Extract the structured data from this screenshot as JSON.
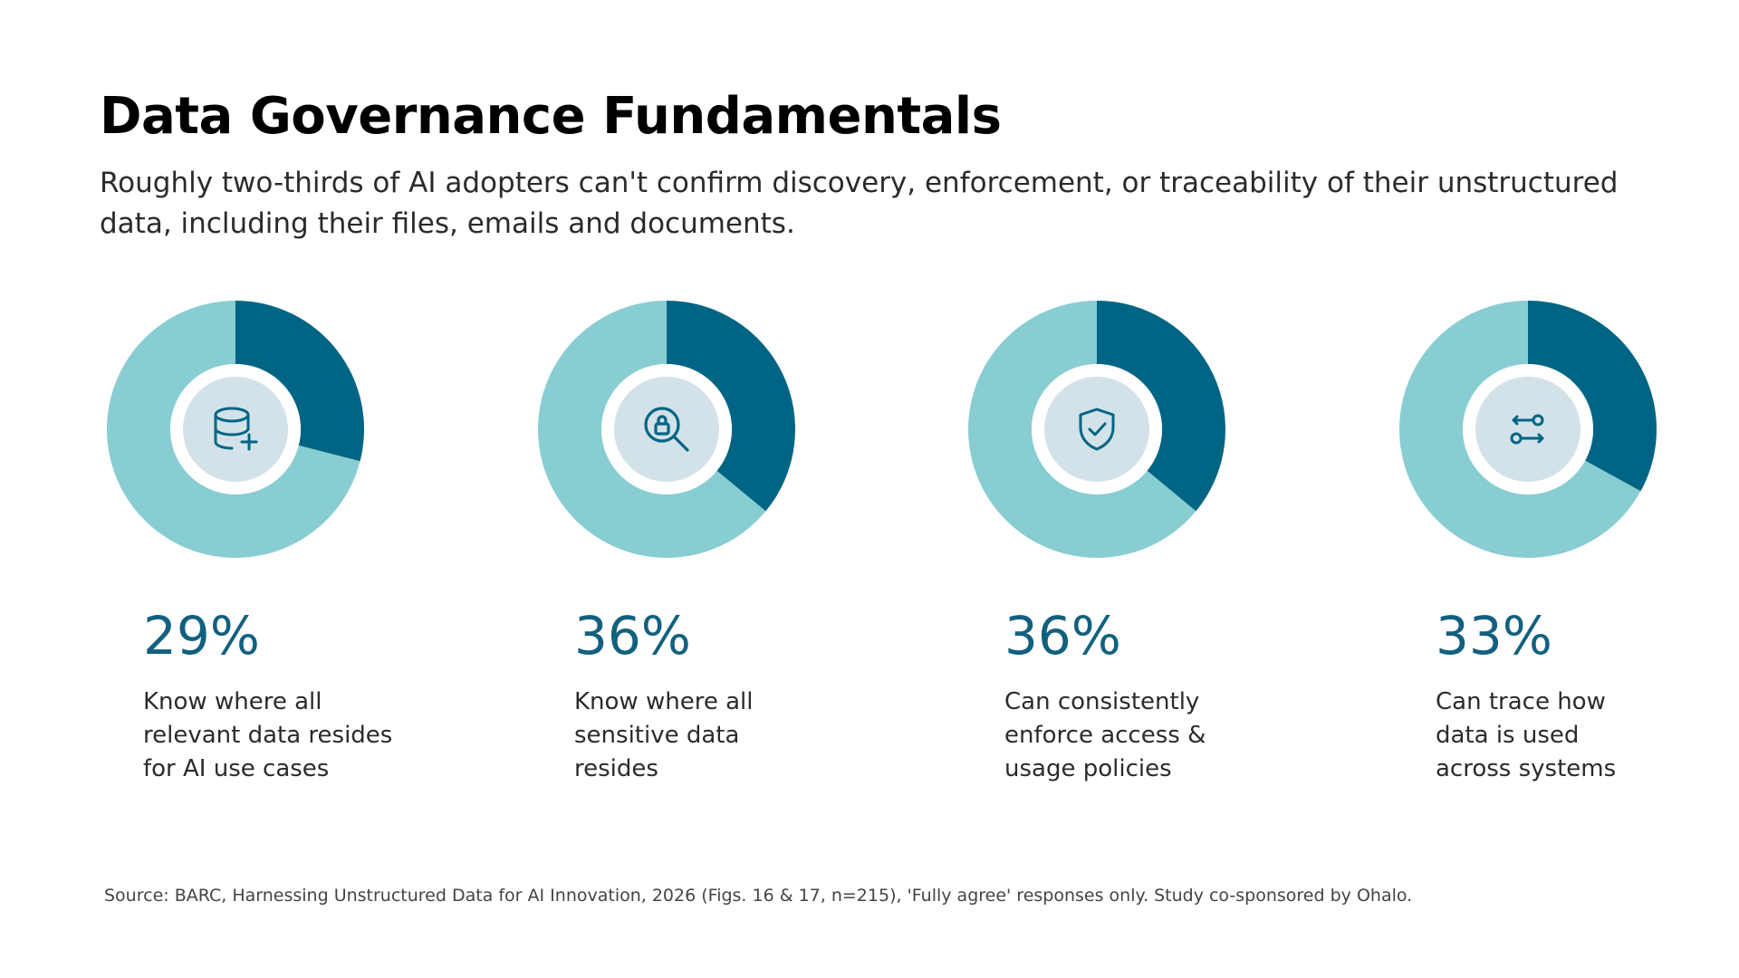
{
  "title": "Data Governance Fundamentals",
  "subtitle": "Roughly two-thirds of AI adopters can't confirm discovery, enforcement, or traceability of their unstructured data, including their files, emails and documents.",
  "colors": {
    "primary": "#006584",
    "secondary": "#88cdd2",
    "icon_bg": "#d2e2e8",
    "percent_text": "#12607f"
  },
  "chart_data": [
    {
      "type": "pie",
      "values": [
        29,
        71
      ],
      "label": "29%",
      "description": "Know where all\nrelevant data resides\nfor AI use cases",
      "icon": "database-add-icon"
    },
    {
      "type": "pie",
      "values": [
        36,
        64
      ],
      "label": "36%",
      "description": "Know where all\nsensitive data\nresides",
      "icon": "search-lock-icon"
    },
    {
      "type": "pie",
      "values": [
        36,
        64
      ],
      "label": "36%",
      "description": "Can consistently\nenforce access &\nusage policies",
      "icon": "shield-check-icon"
    },
    {
      "type": "pie",
      "values": [
        33,
        67
      ],
      "label": "33%",
      "description": "Can trace how\ndata is used\nacross systems",
      "icon": "data-flow-icon"
    }
  ],
  "source": "Source: BARC, Harnessing Unstructured Data for AI Innovation, 2026 (Figs. 16 & 17, n=215), 'Fully agree' responses only.  Study co-sponsored by Ohalo."
}
